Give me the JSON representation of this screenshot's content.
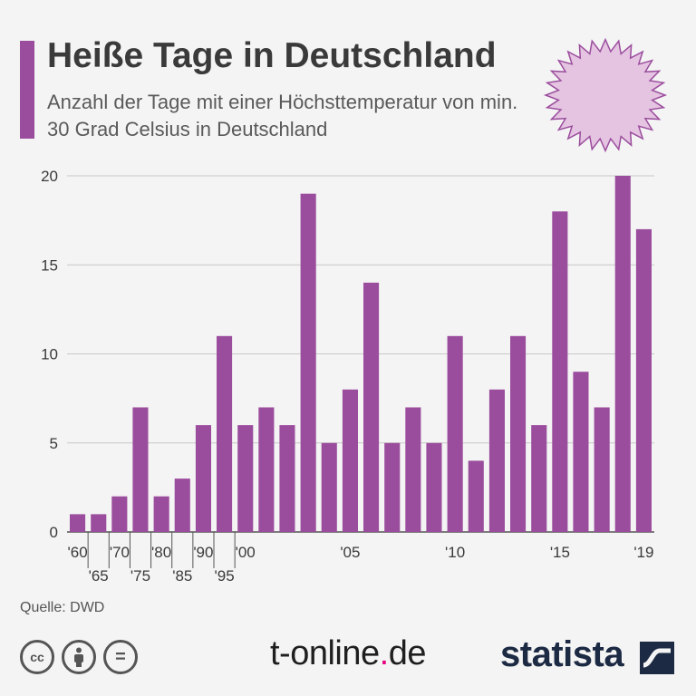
{
  "header": {
    "title": "Heiße Tage in Deutschland",
    "subtitle": "Anzahl der Tage mit einer Höchsttemperatur von min. 30 Grad Celsius in Deutschland"
  },
  "footer": {
    "source": "Quelle: DWD",
    "brand_tonline_main": "t-online",
    "brand_tonline_dot": ".",
    "brand_tonline_tld": "de",
    "brand_statista": "statista",
    "license_icons": [
      "cc-icon",
      "by-icon",
      "nd-icon"
    ],
    "license_glyphs": {
      "cc": "cc",
      "nd": "="
    }
  },
  "colors": {
    "bar": "#9b4d9d",
    "accent": "#9b4d9d",
    "sun_fill": "#e4c4e1",
    "sun_stroke": "#9b4d9d"
  },
  "chart_data": {
    "type": "bar",
    "title": "Heiße Tage in Deutschland",
    "subtitle": "Anzahl der Tage mit einer Höchsttemperatur von min. 30 Grad Celsius in Deutschland",
    "xlabel": "",
    "ylabel": "",
    "ylim": [
      0,
      20
    ],
    "yticks": [
      0,
      5,
      10,
      15,
      20
    ],
    "grid": true,
    "legend": "none",
    "categories": [
      "1960",
      "1965",
      "1970",
      "1975",
      "1980",
      "1985",
      "1990",
      "1995",
      "2000",
      "2001",
      "2002",
      "2003",
      "2004",
      "2005",
      "2006",
      "2007",
      "2008",
      "2009",
      "2010",
      "2011",
      "2012",
      "2013",
      "2014",
      "2015",
      "2016",
      "2017",
      "2018",
      "2019"
    ],
    "values": [
      1,
      1,
      2,
      7,
      2,
      3,
      6,
      11,
      6,
      7,
      6,
      19,
      5,
      8,
      14,
      5,
      7,
      5,
      11,
      4,
      8,
      11,
      6,
      18,
      9,
      7,
      20,
      17
    ],
    "tick_labels": [
      {
        "index": 0,
        "label": "'60",
        "row": 0
      },
      {
        "index": 1,
        "label": "'65",
        "row": 1
      },
      {
        "index": 2,
        "label": "'70",
        "row": 0
      },
      {
        "index": 3,
        "label": "'75",
        "row": 1
      },
      {
        "index": 4,
        "label": "'80",
        "row": 0
      },
      {
        "index": 5,
        "label": "'85",
        "row": 1
      },
      {
        "index": 6,
        "label": "'90",
        "row": 0
      },
      {
        "index": 7,
        "label": "'95",
        "row": 1
      },
      {
        "index": 8,
        "label": "'00",
        "row": 0
      },
      {
        "index": 13,
        "label": "'05",
        "row": 0
      },
      {
        "index": 18,
        "label": "'10",
        "row": 0
      },
      {
        "index": 23,
        "label": "'15",
        "row": 0
      },
      {
        "index": 27,
        "label": "'19",
        "row": 0
      }
    ],
    "period_divider_indices": [
      1,
      2,
      3,
      4,
      5,
      6,
      7,
      8
    ]
  }
}
